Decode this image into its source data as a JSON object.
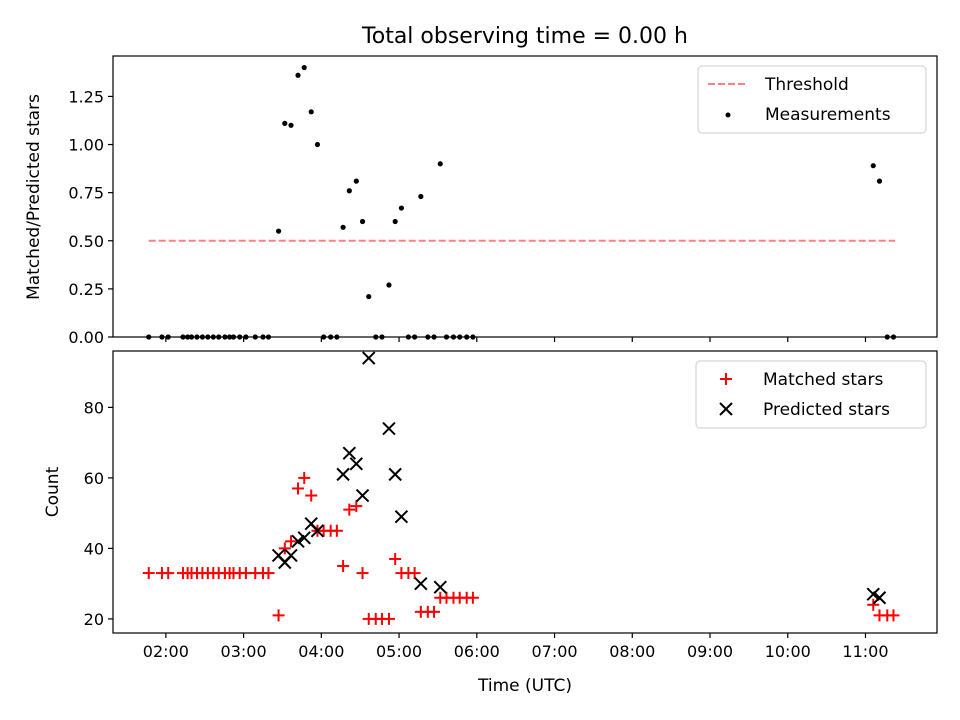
{
  "figure": {
    "title": "Total observing time = 0.00 h",
    "xlabel": "Time (UTC)",
    "xticks": [
      "02:00",
      "03:00",
      "04:00",
      "05:00",
      "06:00",
      "07:00",
      "08:00",
      "09:00",
      "10:00",
      "11:00"
    ]
  },
  "chart_data": [
    {
      "type": "scatter",
      "ylabel": "Matched/Predicted stars",
      "yticks": [
        "0.00",
        "0.25",
        "0.50",
        "0.75",
        "1.00",
        "1.25"
      ],
      "xlim": [
        1.32,
        11.92
      ],
      "ylim": [
        0,
        1.46
      ],
      "legend_placement": "top-right",
      "threshold": {
        "name": "Threshold",
        "color": "#ff8080",
        "x": [
          1.78,
          11.38
        ],
        "y": 0.5
      },
      "series": [
        {
          "name": "Measurements",
          "color": "#000000",
          "marker": "dot",
          "x": [
            1.78,
            1.95,
            2.03,
            2.22,
            2.28,
            2.33,
            2.4,
            2.47,
            2.54,
            2.61,
            2.68,
            2.76,
            2.82,
            2.87,
            2.95,
            3.03,
            3.15,
            3.25,
            3.32,
            3.45,
            3.53,
            3.61,
            3.7,
            3.78,
            3.87,
            3.95,
            4.03,
            4.12,
            4.2,
            4.28,
            4.36,
            4.45,
            4.53,
            4.61,
            4.7,
            4.78,
            4.87,
            4.95,
            5.03,
            5.12,
            5.2,
            5.28,
            5.37,
            5.45,
            5.53,
            5.61,
            5.7,
            5.78,
            5.87,
            5.95,
            11.1,
            11.18,
            11.28,
            11.36
          ],
          "y": [
            0,
            0,
            0,
            0,
            0,
            0,
            0,
            0,
            0,
            0,
            0,
            0,
            0,
            0,
            0,
            0,
            0,
            0,
            0,
            0.55,
            1.11,
            1.1,
            1.36,
            1.4,
            1.17,
            1.0,
            0,
            0,
            0,
            0.57,
            0.76,
            0.81,
            0.6,
            0.21,
            0,
            0,
            0.27,
            0.6,
            0.67,
            0,
            0,
            0.73,
            0,
            0,
            0.9,
            0,
            0,
            0,
            0,
            0,
            0.89,
            0.81,
            0,
            0
          ]
        }
      ]
    },
    {
      "type": "scatter",
      "ylabel": "Count",
      "yticks": [
        "20",
        "40",
        "60",
        "80"
      ],
      "xlim": [
        1.32,
        11.92
      ],
      "ylim": [
        16,
        96
      ],
      "legend_placement": "top-right",
      "series": [
        {
          "name": "Matched stars",
          "color": "#ff0000",
          "marker": "plus",
          "x": [
            1.78,
            1.95,
            2.03,
            2.22,
            2.28,
            2.33,
            2.4,
            2.47,
            2.54,
            2.61,
            2.68,
            2.76,
            2.82,
            2.87,
            2.95,
            3.03,
            3.15,
            3.25,
            3.32,
            3.45,
            3.53,
            3.61,
            3.7,
            3.78,
            3.87,
            3.95,
            4.03,
            4.12,
            4.2,
            4.28,
            4.36,
            4.45,
            4.53,
            4.61,
            4.7,
            4.78,
            4.87,
            4.95,
            5.03,
            5.12,
            5.2,
            5.28,
            5.37,
            5.45,
            5.53,
            5.61,
            5.7,
            5.78,
            5.87,
            5.95,
            11.1,
            11.18,
            11.28,
            11.36
          ],
          "y": [
            33,
            33,
            33,
            33,
            33,
            33,
            33,
            33,
            33,
            33,
            33,
            33,
            33,
            33,
            33,
            33,
            33,
            33,
            33,
            21,
            40,
            42,
            57,
            60,
            55,
            45,
            45,
            45,
            45,
            35,
            51,
            52,
            33,
            20,
            20,
            20,
            20,
            37,
            33,
            33,
            33,
            22,
            22,
            22,
            26,
            26,
            26,
            26,
            26,
            26,
            24,
            21,
            21,
            21
          ]
        },
        {
          "name": "Predicted stars",
          "color": "#000000",
          "marker": "cross",
          "x": [
            3.45,
            3.53,
            3.61,
            3.7,
            3.78,
            3.87,
            3.95,
            4.28,
            4.36,
            4.45,
            4.53,
            4.61,
            4.87,
            4.95,
            5.03,
            5.28,
            5.53,
            11.1,
            11.18
          ],
          "y": [
            38,
            36,
            38,
            42,
            43,
            47,
            45,
            61,
            67,
            64,
            55,
            94,
            74,
            61,
            49,
            30,
            29,
            27,
            26
          ]
        }
      ]
    }
  ]
}
